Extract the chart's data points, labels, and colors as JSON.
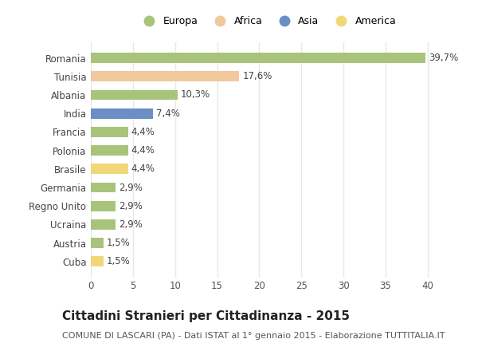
{
  "countries": [
    "Romania",
    "Tunisia",
    "Albania",
    "India",
    "Francia",
    "Polonia",
    "Brasile",
    "Germania",
    "Regno Unito",
    "Ucraina",
    "Austria",
    "Cuba"
  ],
  "values": [
    39.7,
    17.6,
    10.3,
    7.4,
    4.4,
    4.4,
    4.4,
    2.9,
    2.9,
    2.9,
    1.5,
    1.5
  ],
  "labels": [
    "39,7%",
    "17,6%",
    "10,3%",
    "7,4%",
    "4,4%",
    "4,4%",
    "4,4%",
    "2,9%",
    "2,9%",
    "2,9%",
    "1,5%",
    "1,5%"
  ],
  "colors": [
    "#adc eighteen88",
    "#f2c89e",
    "#adcr88",
    "#6b8fc4",
    "#adc888",
    "#adc888",
    "#f2d97a",
    "#adc888",
    "#adc888",
    "#adc888",
    "#adc888",
    "#f2d97a"
  ],
  "bar_colors": [
    "#a8c47a",
    "#f2c89e",
    "#a8c47a",
    "#6b8fc4",
    "#a8c47a",
    "#a8c47a",
    "#f0d878",
    "#a8c47a",
    "#a8c47a",
    "#a8c47a",
    "#a8c47a",
    "#f0d878"
  ],
  "legend_labels": [
    "Europa",
    "Africa",
    "Asia",
    "America"
  ],
  "legend_colors": [
    "#a8c47a",
    "#f2c89e",
    "#6b8fc4",
    "#f0d878"
  ],
  "title": "Cittadini Stranieri per Cittadinanza - 2015",
  "subtitle": "COMUNE DI LASCARI (PA) - Dati ISTAT al 1° gennaio 2015 - Elaborazione TUTTITALIA.IT",
  "xlim": [
    0,
    42
  ],
  "xticks": [
    0,
    5,
    10,
    15,
    20,
    25,
    30,
    35,
    40
  ],
  "bg_color": "#ffffff",
  "plot_bg": "#ffffff",
  "bar_height": 0.55,
  "grid_color": "#e8e8e8",
  "title_fontsize": 11,
  "subtitle_fontsize": 8,
  "label_fontsize": 8.5,
  "tick_fontsize": 8.5,
  "legend_fontsize": 9
}
